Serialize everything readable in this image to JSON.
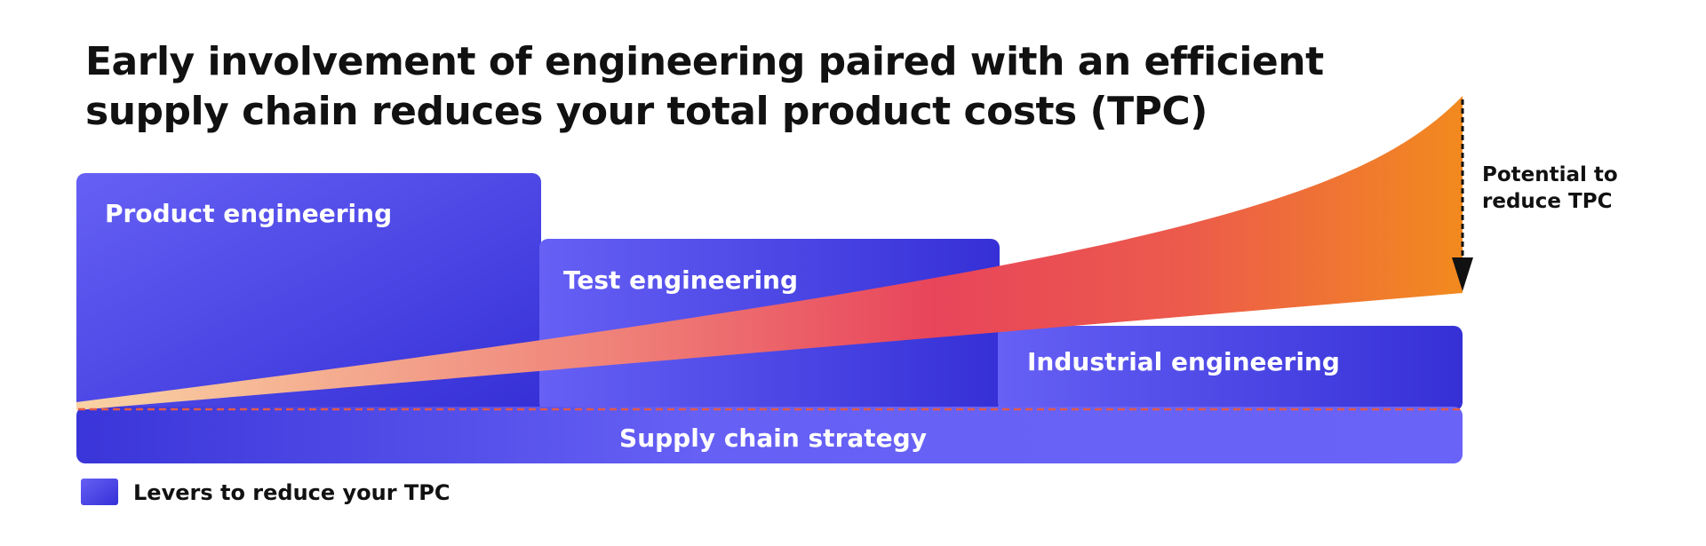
{
  "title": {
    "line1": "Early involvement of engineering paired with an efficient",
    "line2": "supply chain reduces your total product costs (TPC)"
  },
  "blocks": {
    "product_engineering": "Product engineering",
    "test_engineering": "Test engineering",
    "industrial_engineering": "Industrial engineering",
    "supply_chain_strategy": "Supply chain strategy"
  },
  "annotation": {
    "line1": "Potential to",
    "line2": "reduce TPC"
  },
  "legend": {
    "label": "Levers to reduce your TPC"
  },
  "colors": {
    "block_light": "#6660f5",
    "block_dark": "#3530d6",
    "wedge_start": "#f7c79a",
    "wedge_mid": "#e8455a",
    "wedge_end": "#f18424",
    "dashed_line": "#e25a4a",
    "arrow": "#111111"
  }
}
